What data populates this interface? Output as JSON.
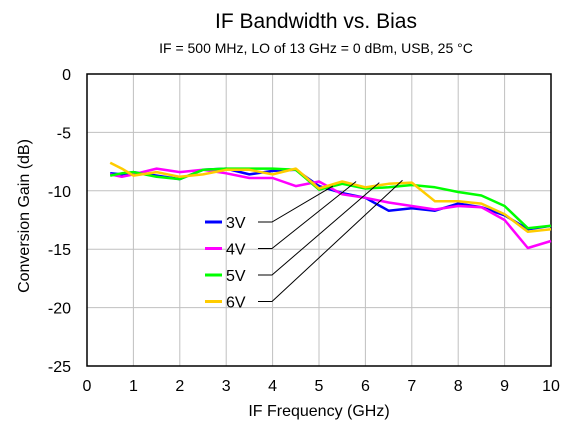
{
  "chart_data": {
    "type": "line",
    "title": "IF Bandwidth vs. Bias",
    "subtitle": "IF = 500 MHz, LO of 13 GHz = 0 dBm, USB, 25 °C",
    "xlabel": "IF Frequency (GHz)",
    "ylabel": "Conversion Gain (dB)",
    "xlim": [
      0,
      10
    ],
    "ylim": [
      -25,
      0
    ],
    "xticks": [
      "0",
      "1",
      "2",
      "3",
      "4",
      "5",
      "6",
      "7",
      "8",
      "9",
      "10"
    ],
    "yticks": [
      "0",
      "-5",
      "-10",
      "-15",
      "-20",
      "-25"
    ],
    "grid": true,
    "legend_position": "center-left",
    "x": [
      0.5,
      0.75,
      1.0,
      1.5,
      2.0,
      2.5,
      3.0,
      3.5,
      4.0,
      4.5,
      5.0,
      5.5,
      6.0,
      6.5,
      7.0,
      7.5,
      8.0,
      8.5,
      9.0,
      9.5,
      10.0
    ],
    "series": [
      {
        "name": "3V",
        "color": "#0000ff",
        "values": [
          -8.5,
          -8.6,
          -8.4,
          -8.7,
          -9.0,
          -8.2,
          -8.1,
          -8.6,
          -8.3,
          -8.2,
          -9.6,
          -10.2,
          -10.6,
          -11.7,
          -11.5,
          -11.7,
          -11.1,
          -11.4,
          -12.1,
          -13.3,
          -13.0
        ]
      },
      {
        "name": "4V",
        "color": "#ff00ff",
        "values": [
          -8.6,
          -8.8,
          -8.6,
          -8.1,
          -8.4,
          -8.2,
          -8.5,
          -8.9,
          -8.9,
          -9.6,
          -9.2,
          -10.3,
          -10.6,
          -11.0,
          -11.3,
          -11.6,
          -11.3,
          -11.4,
          -12.5,
          -14.9,
          -14.3
        ]
      },
      {
        "name": "5V",
        "color": "#00ff00",
        "values": [
          -8.7,
          -8.5,
          -8.4,
          -8.8,
          -9.0,
          -8.2,
          -8.1,
          -8.1,
          -8.1,
          -8.2,
          -9.9,
          -9.4,
          -9.8,
          -9.7,
          -9.5,
          -9.7,
          -10.1,
          -10.4,
          -11.3,
          -13.2,
          -13.0
        ]
      },
      {
        "name": "6V",
        "color": "#ffcc00",
        "values": [
          -7.6,
          -8.1,
          -8.7,
          -8.4,
          -8.8,
          -8.6,
          -8.2,
          -8.2,
          -8.6,
          -8.1,
          -9.8,
          -9.2,
          -9.7,
          -9.4,
          -9.3,
          -10.9,
          -10.9,
          -11.1,
          -12.0,
          -13.5,
          -13.3
        ]
      }
    ]
  }
}
